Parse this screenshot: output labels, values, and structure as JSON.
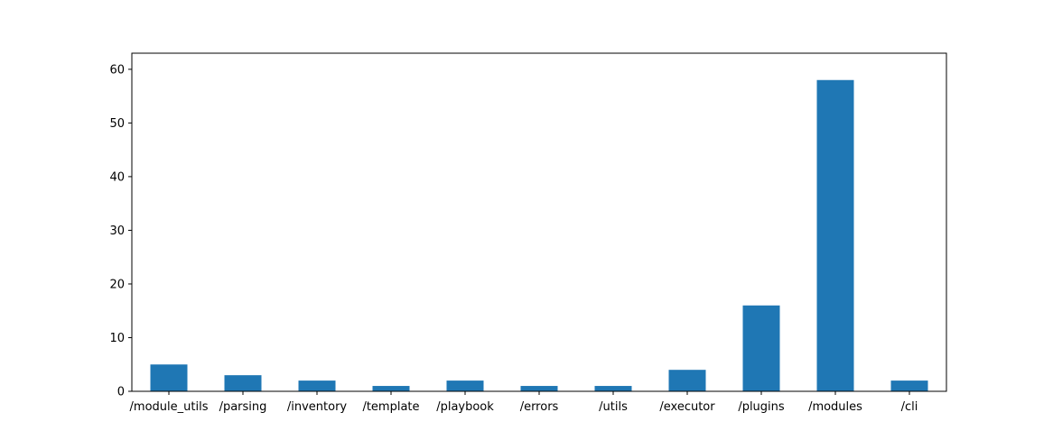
{
  "chart_data": {
    "type": "bar",
    "title": "",
    "xlabel": "",
    "ylabel": "",
    "categories": [
      "/module_utils",
      "/parsing",
      "/inventory",
      "/template",
      "/playbook",
      "/errors",
      "/utils",
      "/executor",
      "/plugins",
      "/modules",
      "/cli"
    ],
    "values": [
      5,
      3,
      2,
      1,
      2,
      1,
      1,
      4,
      16,
      58,
      2
    ],
    "ylim": [
      0,
      63
    ],
    "yticks": [
      0,
      10,
      20,
      30,
      40,
      50,
      60
    ],
    "grid": false,
    "legend": "none",
    "bar_color": "#1f77b4"
  }
}
